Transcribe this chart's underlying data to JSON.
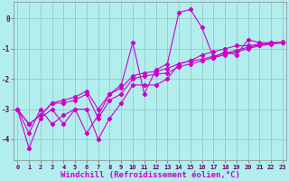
{
  "title": "",
  "xlabel": "Windchill (Refroidissement éolien,°C)",
  "background_color": "#b2eeee",
  "grid_color": "#90cccc",
  "line_color": "#cc00cc",
  "x_values": [
    0,
    1,
    2,
    3,
    4,
    5,
    6,
    7,
    8,
    9,
    10,
    11,
    12,
    13,
    14,
    15,
    16,
    17,
    18,
    19,
    20,
    21,
    22,
    23
  ],
  "line1": [
    -3.0,
    -3.8,
    -3.0,
    -3.5,
    -3.2,
    -3.0,
    -3.8,
    -3.2,
    -2.5,
    -2.2,
    -0.8,
    -2.5,
    -1.7,
    -1.5,
    0.2,
    0.3,
    -0.3,
    -1.3,
    -1.1,
    -1.2,
    -0.7,
    -0.8,
    -0.8,
    -0.8
  ],
  "line2": [
    -3.0,
    -4.3,
    -3.3,
    -3.0,
    -3.5,
    -3.0,
    -3.0,
    -4.0,
    -3.3,
    -2.8,
    -2.2,
    -2.2,
    -2.2,
    -2.0,
    -1.5,
    -1.4,
    -1.2,
    -1.1,
    -1.0,
    -0.9,
    -0.9,
    -0.85,
    -0.8,
    -0.8
  ],
  "line3": [
    -3.0,
    -3.5,
    -3.2,
    -2.8,
    -2.8,
    -2.7,
    -2.5,
    -3.3,
    -2.7,
    -2.5,
    -2.0,
    -1.9,
    -1.85,
    -1.8,
    -1.6,
    -1.5,
    -1.4,
    -1.3,
    -1.2,
    -1.1,
    -1.0,
    -0.9,
    -0.85,
    -0.8
  ],
  "line4": [
    -3.0,
    -3.5,
    -3.2,
    -2.8,
    -2.7,
    -2.6,
    -2.4,
    -3.0,
    -2.5,
    -2.3,
    -1.9,
    -1.8,
    -1.75,
    -1.65,
    -1.5,
    -1.4,
    -1.35,
    -1.25,
    -1.15,
    -1.05,
    -0.95,
    -0.88,
    -0.82,
    -0.78
  ],
  "ylim": [
    -4.7,
    0.55
  ],
  "xlim": [
    -0.3,
    23.3
  ],
  "yticks": [
    0,
    -1,
    -2,
    -3,
    -4
  ],
  "xticks": [
    0,
    1,
    2,
    3,
    4,
    5,
    6,
    7,
    8,
    9,
    10,
    11,
    12,
    13,
    14,
    15,
    16,
    17,
    18,
    19,
    20,
    21,
    22,
    23
  ],
  "tick_fontsize": 5,
  "xlabel_fontsize": 6.5
}
